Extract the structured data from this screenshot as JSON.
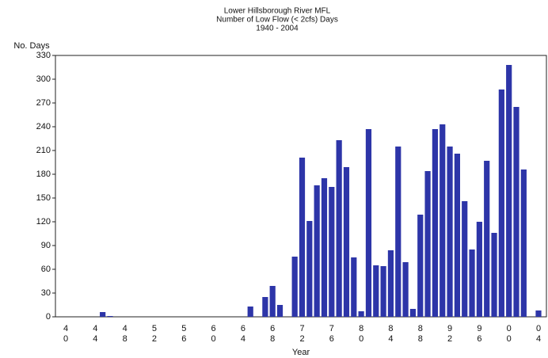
{
  "chart_data": {
    "type": "bar",
    "title": "Lower Hillsborough River MFL",
    "subtitle": "Number of Low Flow (< 2cfs) Days",
    "period": "1940 - 2004",
    "y_label": "No. Days",
    "x_label": "Year",
    "color": "#2d35a8",
    "categories": [
      "40",
      null,
      null,
      null,
      "44",
      null,
      null,
      null,
      "48",
      null,
      null,
      null,
      "52",
      null,
      null,
      null,
      "56",
      null,
      null,
      null,
      "60",
      null,
      null,
      null,
      "64",
      null,
      null,
      null,
      "68",
      null,
      null,
      null,
      "72",
      null,
      null,
      null,
      "76",
      null,
      null,
      null,
      "80",
      null,
      null,
      null,
      "84",
      null,
      null,
      null,
      "88",
      null,
      null,
      null,
      "92",
      null,
      null,
      null,
      "96",
      null,
      null,
      null,
      "00",
      null,
      null,
      null,
      "04"
    ],
    "values": [
      0,
      0,
      0,
      0,
      0,
      6,
      1,
      0,
      0,
      0,
      0,
      0,
      0,
      0,
      0,
      0,
      0,
      0,
      0,
      0,
      0,
      0,
      0,
      0,
      0,
      13,
      0,
      25,
      39,
      15,
      0,
      76,
      201,
      121,
      166,
      175,
      164,
      223,
      189,
      75,
      7,
      237,
      65,
      64,
      84,
      215,
      69,
      10,
      129,
      184,
      237,
      243,
      215,
      206,
      146,
      85,
      120,
      197,
      106,
      287,
      318,
      265,
      186,
      0,
      8
    ],
    "ylim": [
      0,
      330
    ],
    "yticks": [
      0,
      30,
      60,
      90,
      120,
      150,
      180,
      210,
      240,
      270,
      300,
      330
    ],
    "grid": false
  }
}
